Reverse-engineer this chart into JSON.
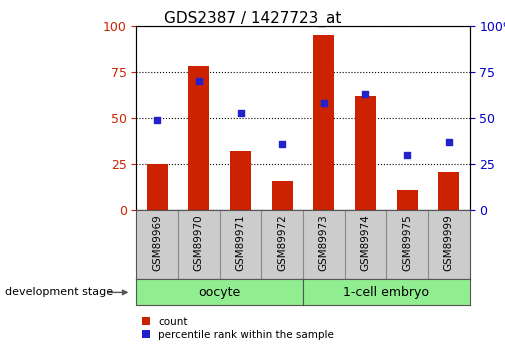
{
  "title": "GDS2387 / 1427723_at",
  "samples": [
    "GSM89969",
    "GSM89970",
    "GSM89971",
    "GSM89972",
    "GSM89973",
    "GSM89974",
    "GSM89975",
    "GSM89999"
  ],
  "counts": [
    25,
    78,
    32,
    16,
    95,
    62,
    11,
    21
  ],
  "percentiles": [
    49,
    70,
    53,
    36,
    58,
    63,
    30,
    37
  ],
  "groups": [
    {
      "label": "oocyte",
      "start": 0,
      "end": 3
    },
    {
      "label": "1-cell embryo",
      "start": 4,
      "end": 7
    }
  ],
  "bar_color": "#cc2200",
  "dot_color": "#2222cc",
  "tick_color_left": "#cc2200",
  "tick_color_right": "#0000cc",
  "ylim": [
    0,
    100
  ],
  "bg_plot": "#ffffff",
  "bg_labels": "#cccccc",
  "bg_group": "#90ee90",
  "legend_count_label": "count",
  "legend_percentile_label": "percentile rank within the sample",
  "dev_stage_label": "development stage",
  "figsize": [
    5.05,
    3.45
  ],
  "dpi": 100
}
